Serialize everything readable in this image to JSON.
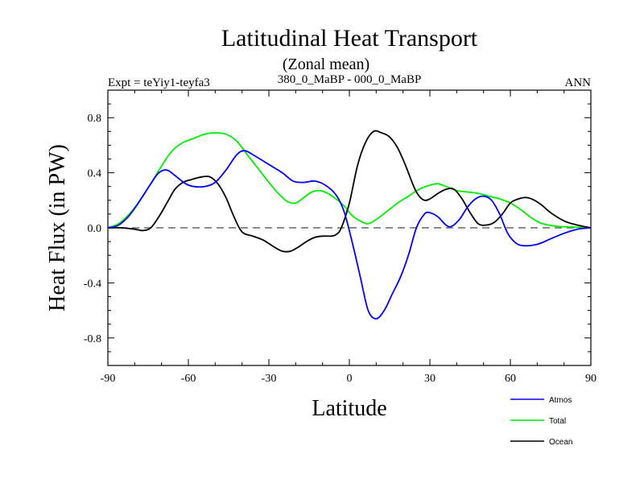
{
  "chart_data": {
    "type": "line",
    "title": "Latitudinal Heat Transport",
    "subtitle": "(Zonal mean)",
    "left_label": "Expt = teYiy1-teyfa3",
    "center_label": "380_0_MaBP - 000_0_MaBP",
    "right_label": "ANN",
    "xlabel": "Latitude",
    "ylabel": "Heat Flux (in PW)",
    "xlim": [
      -90,
      90
    ],
    "ylim": [
      -1.0,
      1.0
    ],
    "x_ticks": [
      -90,
      -60,
      -30,
      0,
      30,
      60,
      90
    ],
    "y_ticks": [
      -0.8,
      -0.4,
      0.0,
      0.4,
      0.8
    ],
    "y_tick_labels": [
      "-0.8",
      "-0.4",
      "0.0",
      "0.4",
      "0.8"
    ],
    "zero_line": "dashed",
    "grid": false,
    "legend_position": "bottom-right",
    "series": [
      {
        "name": "Atmos",
        "color": "#0000ff",
        "points": [
          [
            -90,
            0.0
          ],
          [
            -86,
            0.02
          ],
          [
            -82,
            0.09
          ],
          [
            -78,
            0.2
          ],
          [
            -74,
            0.32
          ],
          [
            -71,
            0.4
          ],
          [
            -68,
            0.42
          ],
          [
            -65,
            0.38
          ],
          [
            -61,
            0.32
          ],
          [
            -58,
            0.3
          ],
          [
            -54,
            0.3
          ],
          [
            -50,
            0.33
          ],
          [
            -46,
            0.42
          ],
          [
            -42,
            0.53
          ],
          [
            -39,
            0.56
          ],
          [
            -35,
            0.52
          ],
          [
            -30,
            0.46
          ],
          [
            -25,
            0.4
          ],
          [
            -21,
            0.34
          ],
          [
            -17,
            0.33
          ],
          [
            -13,
            0.34
          ],
          [
            -9,
            0.31
          ],
          [
            -5,
            0.24
          ],
          [
            -2,
            0.12
          ],
          [
            1,
            -0.1
          ],
          [
            4,
            -0.35
          ],
          [
            7,
            -0.6
          ],
          [
            10,
            -0.66
          ],
          [
            13,
            -0.6
          ],
          [
            16,
            -0.48
          ],
          [
            19,
            -0.36
          ],
          [
            22,
            -0.2
          ],
          [
            25,
            0.0
          ],
          [
            28,
            0.1
          ],
          [
            30,
            0.11
          ],
          [
            33,
            0.08
          ],
          [
            36,
            0.02
          ],
          [
            38,
            0.01
          ],
          [
            41,
            0.06
          ],
          [
            44,
            0.15
          ],
          [
            47,
            0.21
          ],
          [
            50,
            0.23
          ],
          [
            53,
            0.2
          ],
          [
            56,
            0.1
          ],
          [
            59,
            -0.04
          ],
          [
            62,
            -0.11
          ],
          [
            65,
            -0.13
          ],
          [
            70,
            -0.12
          ],
          [
            75,
            -0.08
          ],
          [
            80,
            -0.04
          ],
          [
            85,
            -0.01
          ],
          [
            90,
            0.0
          ]
        ]
      },
      {
        "name": "Total",
        "color": "#00ee00",
        "points": [
          [
            -90,
            0.0
          ],
          [
            -86,
            0.03
          ],
          [
            -82,
            0.1
          ],
          [
            -78,
            0.2
          ],
          [
            -74,
            0.32
          ],
          [
            -70,
            0.45
          ],
          [
            -66,
            0.56
          ],
          [
            -62,
            0.62
          ],
          [
            -58,
            0.65
          ],
          [
            -54,
            0.68
          ],
          [
            -50,
            0.69
          ],
          [
            -46,
            0.68
          ],
          [
            -42,
            0.63
          ],
          [
            -38,
            0.53
          ],
          [
            -34,
            0.43
          ],
          [
            -30,
            0.33
          ],
          [
            -26,
            0.24
          ],
          [
            -23,
            0.19
          ],
          [
            -20,
            0.18
          ],
          [
            -17,
            0.22
          ],
          [
            -14,
            0.26
          ],
          [
            -11,
            0.27
          ],
          [
            -8,
            0.25
          ],
          [
            -5,
            0.21
          ],
          [
            -2,
            0.16
          ],
          [
            1,
            0.09
          ],
          [
            4,
            0.05
          ],
          [
            7,
            0.03
          ],
          [
            10,
            0.06
          ],
          [
            14,
            0.12
          ],
          [
            18,
            0.18
          ],
          [
            22,
            0.23
          ],
          [
            26,
            0.28
          ],
          [
            30,
            0.31
          ],
          [
            33,
            0.32
          ],
          [
            36,
            0.3
          ],
          [
            40,
            0.27
          ],
          [
            44,
            0.26
          ],
          [
            48,
            0.25
          ],
          [
            52,
            0.23
          ],
          [
            56,
            0.21
          ],
          [
            60,
            0.18
          ],
          [
            64,
            0.13
          ],
          [
            68,
            0.07
          ],
          [
            72,
            0.03
          ],
          [
            78,
            0.01
          ],
          [
            84,
            0.005
          ],
          [
            90,
            0.0
          ]
        ]
      },
      {
        "name": "Ocean",
        "color": "#000000",
        "points": [
          [
            -90,
            0.0
          ],
          [
            -85,
            0.0
          ],
          [
            -80,
            -0.01
          ],
          [
            -77,
            -0.02
          ],
          [
            -74,
            0.0
          ],
          [
            -71,
            0.08
          ],
          [
            -68,
            0.18
          ],
          [
            -65,
            0.28
          ],
          [
            -62,
            0.33
          ],
          [
            -59,
            0.35
          ],
          [
            -55,
            0.37
          ],
          [
            -52,
            0.37
          ],
          [
            -49,
            0.32
          ],
          [
            -46,
            0.22
          ],
          [
            -43,
            0.08
          ],
          [
            -40,
            -0.03
          ],
          [
            -36,
            -0.06
          ],
          [
            -32,
            -0.09
          ],
          [
            -28,
            -0.14
          ],
          [
            -25,
            -0.17
          ],
          [
            -22,
            -0.17
          ],
          [
            -19,
            -0.14
          ],
          [
            -16,
            -0.1
          ],
          [
            -13,
            -0.07
          ],
          [
            -10,
            -0.06
          ],
          [
            -7,
            -0.06
          ],
          [
            -5,
            -0.05
          ],
          [
            -3,
            0.0
          ],
          [
            0,
            0.18
          ],
          [
            3,
            0.45
          ],
          [
            6,
            0.62
          ],
          [
            9,
            0.7
          ],
          [
            12,
            0.69
          ],
          [
            15,
            0.66
          ],
          [
            18,
            0.58
          ],
          [
            21,
            0.45
          ],
          [
            24,
            0.3
          ],
          [
            26,
            0.23
          ],
          [
            28,
            0.2
          ],
          [
            30,
            0.21
          ],
          [
            33,
            0.25
          ],
          [
            36,
            0.28
          ],
          [
            39,
            0.28
          ],
          [
            42,
            0.21
          ],
          [
            45,
            0.11
          ],
          [
            48,
            0.03
          ],
          [
            51,
            0.02
          ],
          [
            54,
            0.04
          ],
          [
            57,
            0.1
          ],
          [
            60,
            0.18
          ],
          [
            63,
            0.21
          ],
          [
            66,
            0.22
          ],
          [
            69,
            0.2
          ],
          [
            72,
            0.16
          ],
          [
            75,
            0.11
          ],
          [
            80,
            0.05
          ],
          [
            85,
            0.02
          ],
          [
            90,
            0.0
          ]
        ]
      }
    ]
  }
}
